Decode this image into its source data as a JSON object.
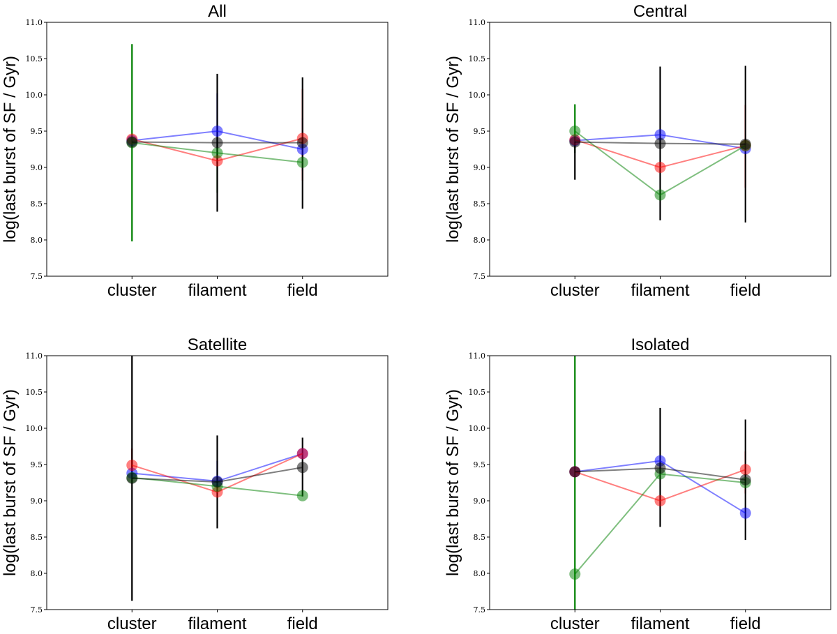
{
  "figure": {
    "colors": {
      "blue": "#0000ff",
      "red": "#ff0000",
      "green": "#008000",
      "black": "#000000"
    }
  },
  "chart_data": [
    {
      "type": "scatter",
      "title": "All",
      "ylabel": "log(last burst of SF / Gyr)",
      "xlabel": "",
      "categories": [
        "cluster",
        "filament",
        "field"
      ],
      "ylim": [
        7.5,
        11.0
      ],
      "yticks": [
        "7.5",
        "8.0",
        "8.5",
        "9.0",
        "9.5",
        "10.0",
        "10.5",
        "11.0"
      ],
      "series": [
        {
          "name": "blue",
          "color": "#0000ff",
          "values": [
            9.37,
            9.5,
            9.25
          ],
          "err_low": [
            9.37,
            9.05,
            8.95
          ],
          "err_high": [
            9.37,
            10.02,
            9.68
          ]
        },
        {
          "name": "red",
          "color": "#ff0000",
          "values": [
            9.39,
            9.09,
            9.4
          ],
          "err_low": [
            9.39,
            9.09,
            8.82
          ],
          "err_high": [
            9.39,
            9.09,
            10.08
          ]
        },
        {
          "name": "green",
          "color": "#008000",
          "values": [
            9.34,
            9.2,
            9.07
          ],
          "err_low": [
            7.98,
            8.65,
            9.07
          ],
          "err_high": [
            10.7,
            9.42,
            9.07
          ]
        },
        {
          "name": "black",
          "color": "#000000",
          "values": [
            9.35,
            9.34,
            9.34
          ],
          "err_low": [
            9.35,
            8.39,
            8.43
          ],
          "err_high": [
            9.35,
            10.29,
            10.24
          ]
        }
      ]
    },
    {
      "type": "scatter",
      "title": "Central",
      "ylabel": "log(last burst of SF / Gyr)",
      "xlabel": "",
      "categories": [
        "cluster",
        "filament",
        "field"
      ],
      "ylim": [
        7.5,
        11.0
      ],
      "yticks": [
        "7.5",
        "8.0",
        "8.5",
        "9.0",
        "9.5",
        "10.0",
        "10.5",
        "11.0"
      ],
      "series": [
        {
          "name": "blue",
          "color": "#0000ff",
          "values": [
            9.37,
            9.45,
            9.26
          ],
          "err_low": [
            9.37,
            9.45,
            9.26
          ],
          "err_high": [
            9.37,
            9.45,
            9.26
          ]
        },
        {
          "name": "red",
          "color": "#ff0000",
          "values": [
            9.38,
            9.0,
            9.3
          ],
          "err_low": [
            9.38,
            9.0,
            8.72
          ],
          "err_high": [
            9.38,
            9.0,
            9.86
          ]
        },
        {
          "name": "green",
          "color": "#008000",
          "values": [
            9.5,
            8.62,
            9.3
          ],
          "err_low": [
            9.2,
            8.62,
            9.3
          ],
          "err_high": [
            9.87,
            8.62,
            9.3
          ]
        },
        {
          "name": "black",
          "color": "#000000",
          "values": [
            9.35,
            9.33,
            9.32
          ],
          "err_low": [
            8.83,
            8.27,
            8.24
          ],
          "err_high": [
            9.35,
            10.39,
            10.4
          ]
        }
      ]
    },
    {
      "type": "scatter",
      "title": "Satellite",
      "ylabel": "log(last burst of SF / Gyr)",
      "xlabel": "",
      "categories": [
        "cluster",
        "filament",
        "field"
      ],
      "ylim": [
        7.5,
        11.0
      ],
      "yticks": [
        "7.5",
        "8.0",
        "8.5",
        "9.0",
        "9.5",
        "10.0",
        "10.5",
        "11.0"
      ],
      "series": [
        {
          "name": "blue",
          "color": "#0000ff",
          "values": [
            9.38,
            9.27,
            9.65
          ],
          "err_low": [
            9.38,
            9.1,
            9.65
          ],
          "err_high": [
            9.38,
            9.55,
            9.65
          ]
        },
        {
          "name": "red",
          "color": "#ff0000",
          "values": [
            9.49,
            9.12,
            9.65
          ],
          "err_low": [
            9.3,
            9.12,
            9.65
          ],
          "err_high": [
            9.72,
            9.12,
            9.65
          ]
        },
        {
          "name": "green",
          "color": "#008000",
          "values": [
            9.32,
            9.2,
            9.07
          ],
          "err_low": [
            9.32,
            9.2,
            9.07
          ],
          "err_high": [
            9.32,
            9.2,
            9.07
          ]
        },
        {
          "name": "black",
          "color": "#000000",
          "values": [
            9.31,
            9.26,
            9.46
          ],
          "err_low": [
            7.62,
            8.62,
            9.06
          ],
          "err_high": [
            11.0,
            9.9,
            9.87
          ]
        }
      ]
    },
    {
      "type": "scatter",
      "title": "Isolated",
      "ylabel": "log(last burst of SF / Gyr)",
      "xlabel": "",
      "categories": [
        "cluster",
        "filament",
        "field"
      ],
      "ylim": [
        7.5,
        11.0
      ],
      "yticks": [
        "7.5",
        "8.0",
        "8.5",
        "9.0",
        "9.5",
        "10.0",
        "10.5",
        "11.0"
      ],
      "series": [
        {
          "name": "blue",
          "color": "#0000ff",
          "values": [
            9.4,
            9.55,
            8.83
          ],
          "err_low": [
            9.4,
            9.55,
            8.83
          ],
          "err_high": [
            9.4,
            9.55,
            8.83
          ]
        },
        {
          "name": "red",
          "color": "#ff0000",
          "values": [
            9.4,
            9.0,
            9.43
          ],
          "err_low": [
            9.4,
            9.0,
            9.1
          ],
          "err_high": [
            9.4,
            9.0,
            9.68
          ]
        },
        {
          "name": "green",
          "color": "#008000",
          "values": [
            7.99,
            9.37,
            9.25
          ],
          "err_low": [
            7.5,
            9.37,
            9.25
          ],
          "err_high": [
            11.0,
            9.37,
            9.25
          ]
        },
        {
          "name": "black",
          "color": "#000000",
          "values": [
            9.4,
            9.45,
            9.29
          ],
          "err_low": [
            9.4,
            8.64,
            8.46
          ],
          "err_high": [
            9.4,
            10.28,
            10.12
          ]
        }
      ]
    }
  ]
}
